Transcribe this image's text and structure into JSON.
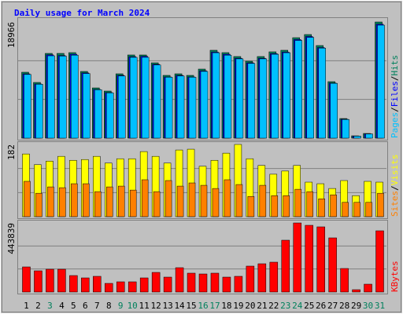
{
  "chart_data": [
    {
      "type": "bar",
      "title": "Daily usage for March 2024",
      "ylim": [
        0,
        18966
      ],
      "yticks": [
        18966
      ],
      "separator": "/",
      "series": [
        {
          "name": "Hits",
          "color": "#00805c",
          "values": [
            10765,
            9099,
            13840,
            13840,
            13968,
            10893,
            8202,
            7689,
            10508,
            13584,
            13584,
            12302,
            10252,
            10508,
            10252,
            11277,
            14353,
            13968,
            13328,
            12559,
            13328,
            14097,
            14353,
            16403,
            16916,
            15122,
            9227,
            3204,
            384,
            769,
            18966
          ]
        },
        {
          "name": "Files",
          "color": "#0000ff",
          "values": [
            10500,
            8850,
            13600,
            13500,
            13700,
            10650,
            7950,
            7450,
            10250,
            13300,
            13350,
            12050,
            10000,
            10250,
            10000,
            11000,
            14050,
            13700,
            13050,
            12300,
            13050,
            13800,
            14050,
            16100,
            16600,
            14800,
            9000,
            3100,
            350,
            700,
            18600
          ]
        },
        {
          "name": "Pages",
          "color": "#00c0ff",
          "values": [
            10400,
            8800,
            13450,
            13400,
            13550,
            10550,
            7900,
            7400,
            10150,
            13200,
            13200,
            11950,
            9950,
            10150,
            9950,
            10900,
            13950,
            13550,
            12950,
            12200,
            12950,
            13700,
            13950,
            15950,
            16450,
            14700,
            8950,
            3050,
            330,
            690,
            18450
          ]
        }
      ]
    },
    {
      "type": "bar",
      "ylim": [
        0,
        182
      ],
      "yticks": [
        182
      ],
      "separator": "/",
      "series": [
        {
          "name": "Visits",
          "color": "#ffff00",
          "values": [
            158,
            131,
            140,
            152,
            142,
            144,
            152,
            135,
            146,
            146,
            164,
            152,
            135,
            168,
            170,
            127,
            142,
            160,
            182,
            146,
            129,
            107,
            115,
            129,
            87,
            83,
            71,
            91,
            53,
            89,
            87
          ]
        },
        {
          "name": "Sites",
          "color": "#ff8000",
          "values": [
            89,
            59,
            75,
            73,
            83,
            83,
            63,
            75,
            77,
            67,
            93,
            63,
            91,
            77,
            85,
            79,
            71,
            93,
            81,
            51,
            79,
            53,
            53,
            69,
            63,
            45,
            55,
            36,
            36,
            36,
            59
          ]
        }
      ]
    },
    {
      "type": "bar",
      "ylim": [
        0,
        443839
      ],
      "yticks": [
        443839
      ],
      "categories": [
        "1",
        "2",
        "3",
        "4",
        "5",
        "6",
        "7",
        "8",
        "9",
        "10",
        "11",
        "12",
        "13",
        "14",
        "15",
        "16",
        "17",
        "18",
        "19",
        "20",
        "21",
        "22",
        "23",
        "24",
        "25",
        "26",
        "27",
        "28",
        "29",
        "30",
        "31"
      ],
      "category_colors": [
        "#000000",
        "#000000",
        "#00805c",
        "#000000",
        "#000000",
        "#000000",
        "#000000",
        "#000000",
        "#00805c",
        "#00805c",
        "#000000",
        "#000000",
        "#000000",
        "#000000",
        "#000000",
        "#00805c",
        "#00805c",
        "#000000",
        "#000000",
        "#000000",
        "#000000",
        "#000000",
        "#00805c",
        "#00805c",
        "#000000",
        "#000000",
        "#000000",
        "#000000",
        "#000000",
        "#00805c",
        "#00805c"
      ],
      "series": [
        {
          "name": "KBytes",
          "color": "#ff0000",
          "values": [
            161400,
            136200,
            146300,
            146300,
            105900,
            90800,
            100900,
            55500,
            65600,
            65600,
            90800,
            126100,
            95800,
            156400,
            121100,
            116000,
            121100,
            95800,
            100900,
            166500,
            181600,
            191700,
            332900,
            443839,
            428700,
            418700,
            348000,
            151300,
            15100,
            50400,
            393400
          ]
        }
      ]
    }
  ]
}
